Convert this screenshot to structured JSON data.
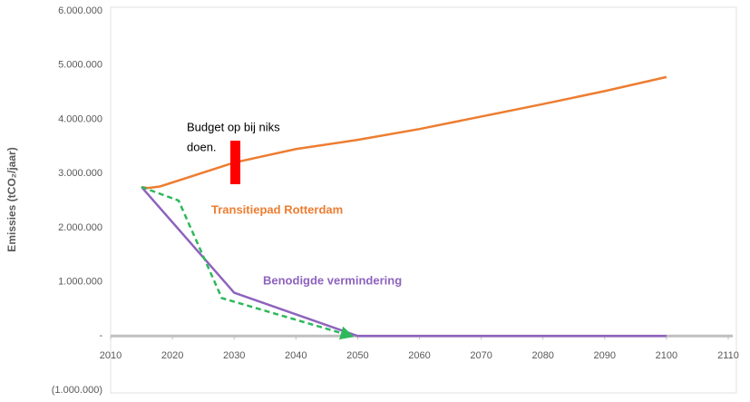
{
  "chart_data": {
    "type": "line",
    "y_axis_label": "Emissies (tCO₂/jaar)",
    "xlim": [
      2010,
      2110
    ],
    "xticks": [
      2010,
      2020,
      2030,
      2040,
      2050,
      2060,
      2070,
      2080,
      2090,
      2100,
      2110
    ],
    "ylim": [
      -1000000,
      6000000
    ],
    "yticks": [
      {
        "value": -1000000,
        "label": "(1.000.000)"
      },
      {
        "value": 0,
        "label": "-"
      },
      {
        "value": 1000000,
        "label": "1.000.000"
      },
      {
        "value": 2000000,
        "label": "2.000.000"
      },
      {
        "value": 3000000,
        "label": "3.000.000"
      },
      {
        "value": 4000000,
        "label": "4.000.000"
      },
      {
        "value": 5000000,
        "label": "5.000.000"
      },
      {
        "value": 6000000,
        "label": "6.000.000"
      }
    ],
    "series": [
      {
        "color": "#ed7d31",
        "dash": false,
        "x": [
          2015,
          2016,
          2018,
          2030,
          2040,
          2050,
          2060,
          2070,
          2080,
          2090,
          2100
        ],
        "values": [
          2750000,
          2730000,
          2760000,
          3200000,
          3450000,
          3620000,
          3820000,
          4050000,
          4280000,
          4520000,
          4780000
        ]
      },
      {
        "color": "#8e63be",
        "dash": false,
        "x": [
          2015,
          2030,
          2050,
          2100
        ],
        "values": [
          2750000,
          800000,
          0,
          0
        ]
      },
      {
        "color": "#2eb85c",
        "dash": true,
        "x": [
          2015,
          2021,
          2028,
          2049
        ],
        "values": [
          2750000,
          2500000,
          700000,
          0
        ]
      }
    ],
    "annotations": [
      {
        "lines": [
          "Budget op bij niks",
          "doen."
        ],
        "color": "#000000"
      },
      {
        "text": "Transitiepad Rotterdam",
        "color": "#ed7d31"
      },
      {
        "text": "Benodigde vermindering",
        "color": "#8e63be"
      }
    ]
  }
}
